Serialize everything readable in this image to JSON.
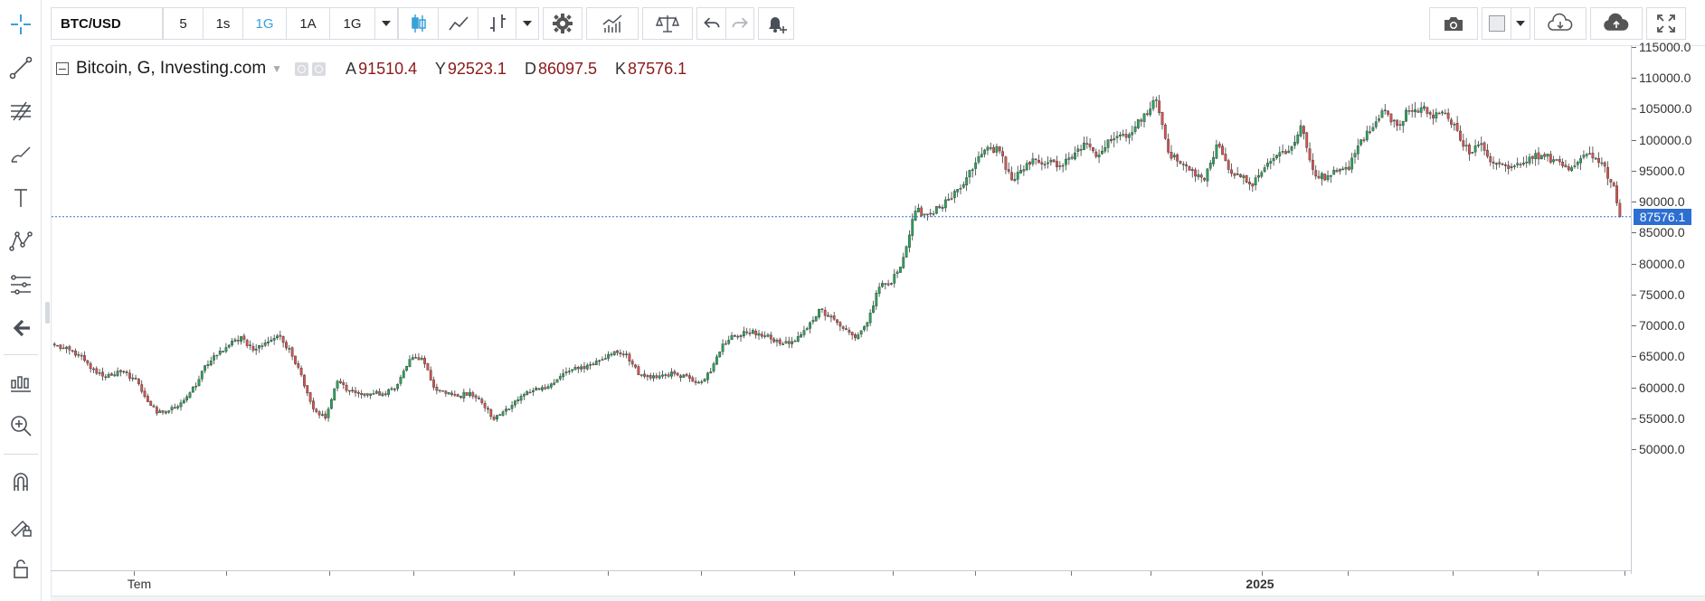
{
  "toolbar": {
    "symbol": "BTC/USD",
    "intervals": [
      "5",
      "1s",
      "1G",
      "1A",
      "1G"
    ],
    "active_interval_index": 2,
    "accent": "#3aa0d8"
  },
  "legend": {
    "title": "Bitcoin, G, Investing.com",
    "open_key": "A",
    "open": "91510.4",
    "high_key": "Y",
    "high": "92523.1",
    "low_key": "D",
    "low": "86097.5",
    "close_key": "K",
    "close": "87576.1"
  },
  "last_price_label": "87576.1",
  "price_axis_labels": [
    "115000.0",
    "110000.0",
    "105000.0",
    "100000.0",
    "95000.0",
    "90000.0",
    "85000.0",
    "80000.0",
    "75000.0",
    "70000.0",
    "65000.0",
    "60000.0",
    "55000.0",
    "50000.0"
  ],
  "time_axis_labels": [
    "Tem",
    "2025"
  ],
  "colors": {
    "up": "#26a65b",
    "down": "#d9534f",
    "last_price_line": "#2d6fd1"
  },
  "chart_data": {
    "type": "candlestick",
    "title": "Bitcoin, G, Investing.com",
    "ylim": [
      47000,
      116000
    ],
    "yticks": [
      50000,
      55000,
      60000,
      65000,
      70000,
      75000,
      80000,
      85000,
      90000,
      95000,
      100000,
      105000,
      110000,
      115000
    ],
    "last_price": 87576.1,
    "anchors": [
      [
        0,
        66800
      ],
      [
        8,
        65300
      ],
      [
        12,
        63000
      ],
      [
        16,
        61800
      ],
      [
        22,
        62500
      ],
      [
        27,
        61300
      ],
      [
        30,
        58500
      ],
      [
        34,
        55800
      ],
      [
        38,
        56200
      ],
      [
        42,
        57500
      ],
      [
        47,
        60200
      ],
      [
        50,
        63500
      ],
      [
        54,
        65200
      ],
      [
        58,
        66800
      ],
      [
        62,
        68200
      ],
      [
        66,
        66000
      ],
      [
        70,
        67200
      ],
      [
        74,
        68300
      ],
      [
        78,
        66300
      ],
      [
        82,
        62000
      ],
      [
        86,
        56500
      ],
      [
        90,
        55000
      ],
      [
        94,
        61000
      ],
      [
        98,
        59500
      ],
      [
        102,
        58800
      ],
      [
        106,
        59000
      ],
      [
        110,
        58900
      ],
      [
        114,
        60500
      ],
      [
        118,
        64500
      ],
      [
        122,
        64700
      ],
      [
        126,
        60000
      ],
      [
        130,
        59000
      ],
      [
        134,
        58500
      ],
      [
        138,
        59200
      ],
      [
        142,
        57500
      ],
      [
        146,
        54800
      ],
      [
        150,
        56500
      ],
      [
        154,
        58000
      ],
      [
        158,
        59200
      ],
      [
        162,
        60000
      ],
      [
        166,
        60700
      ],
      [
        170,
        62500
      ],
      [
        174,
        63000
      ],
      [
        178,
        63700
      ],
      [
        182,
        64500
      ],
      [
        186,
        65800
      ],
      [
        190,
        65400
      ],
      [
        194,
        62000
      ],
      [
        198,
        61500
      ],
      [
        202,
        62000
      ],
      [
        206,
        62200
      ],
      [
        210,
        61800
      ],
      [
        214,
        60800
      ],
      [
        218,
        62500
      ],
      [
        222,
        67000
      ],
      [
        226,
        68300
      ],
      [
        230,
        68800
      ],
      [
        234,
        68700
      ],
      [
        238,
        67800
      ],
      [
        242,
        67000
      ],
      [
        246,
        67500
      ],
      [
        250,
        69500
      ],
      [
        254,
        72600
      ],
      [
        258,
        71500
      ],
      [
        262,
        69500
      ],
      [
        266,
        68000
      ],
      [
        270,
        70500
      ],
      [
        274,
        76200
      ],
      [
        278,
        76800
      ],
      [
        282,
        81000
      ],
      [
        286,
        88500
      ],
      [
        290,
        88000
      ],
      [
        294,
        89000
      ],
      [
        298,
        90500
      ],
      [
        302,
        92800
      ],
      [
        306,
        96300
      ],
      [
        310,
        98800
      ],
      [
        314,
        98200
      ],
      [
        318,
        93500
      ],
      [
        322,
        95200
      ],
      [
        326,
        96800
      ],
      [
        330,
        96300
      ],
      [
        334,
        95800
      ],
      [
        338,
        97000
      ],
      [
        342,
        99500
      ],
      [
        346,
        97300
      ],
      [
        350,
        100000
      ],
      [
        354,
        100800
      ],
      [
        358,
        101200
      ],
      [
        362,
        104200
      ],
      [
        366,
        106500
      ],
      [
        370,
        98000
      ],
      [
        374,
        96200
      ],
      [
        378,
        95000
      ],
      [
        382,
        93500
      ],
      [
        386,
        99200
      ],
      [
        390,
        95200
      ],
      [
        394,
        94000
      ],
      [
        398,
        92500
      ],
      [
        402,
        95500
      ],
      [
        406,
        97500
      ],
      [
        410,
        98200
      ],
      [
        414,
        102300
      ],
      [
        418,
        95200
      ],
      [
        422,
        93500
      ],
      [
        426,
        94800
      ],
      [
        430,
        95200
      ],
      [
        434,
        100000
      ],
      [
        438,
        102000
      ],
      [
        442,
        104800
      ],
      [
        446,
        102300
      ],
      [
        450,
        104700
      ],
      [
        454,
        105200
      ],
      [
        458,
        103500
      ],
      [
        462,
        104300
      ],
      [
        466,
        101500
      ],
      [
        470,
        97700
      ],
      [
        474,
        99400
      ],
      [
        478,
        96200
      ],
      [
        482,
        95800
      ],
      [
        486,
        96200
      ],
      [
        490,
        97200
      ],
      [
        494,
        97500
      ],
      [
        498,
        96800
      ],
      [
        502,
        95600
      ],
      [
        506,
        96400
      ],
      [
        510,
        97800
      ],
      [
        514,
        96300
      ],
      [
        518,
        92500
      ],
      [
        520,
        87576
      ]
    ],
    "note_days": "daily candles, about 521 sessions"
  }
}
